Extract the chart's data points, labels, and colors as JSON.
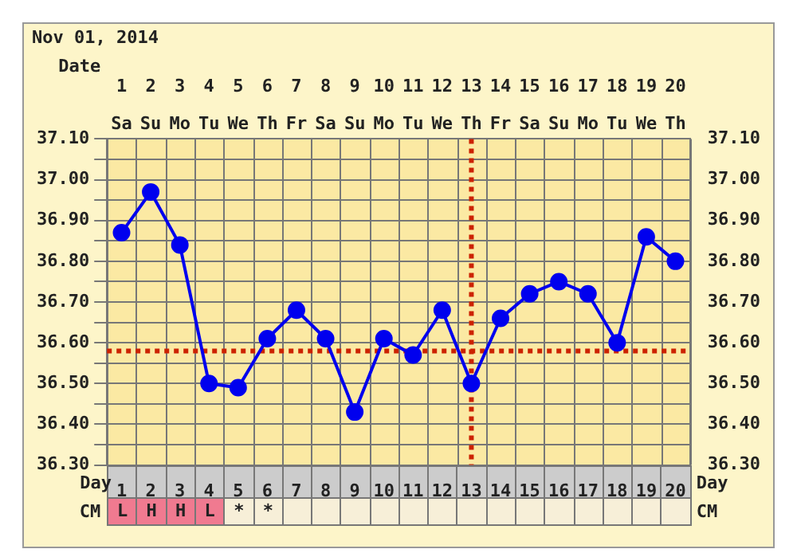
{
  "chart_data": {
    "type": "line",
    "title": "Nov 01, 2014",
    "xlabel": "Day",
    "x2label": "Date",
    "x": [
      1,
      2,
      3,
      4,
      5,
      6,
      7,
      8,
      9,
      10,
      11,
      12,
      13,
      14,
      15,
      16,
      17,
      18,
      19,
      20
    ],
    "series": [
      {
        "color": "#0000ee",
        "values": [
          36.87,
          36.97,
          36.84,
          36.5,
          36.49,
          36.61,
          36.68,
          36.61,
          36.43,
          36.61,
          36.57,
          36.68,
          36.5,
          36.66,
          36.72,
          36.75,
          36.72,
          36.6,
          36.86,
          36.8
        ]
      }
    ],
    "xlim": [
      0.5,
      20.5
    ],
    "xticks": [
      1,
      2,
      3,
      4,
      5,
      6,
      7,
      8,
      9,
      10,
      11,
      12,
      13,
      14,
      15,
      16,
      17,
      18,
      19,
      20
    ],
    "x2lim": [
      0.5,
      20.5
    ],
    "x2ticks": [
      1,
      2,
      3,
      4,
      5,
      6,
      7,
      8,
      9,
      10,
      11,
      12,
      13,
      14,
      15,
      16,
      17,
      18,
      19,
      20
    ],
    "ylim": [
      36.3,
      37.1
    ],
    "yticks": [
      {
        "value": 36.3,
        "label": "36.30"
      },
      {
        "value": 36.35,
        "label": null
      },
      {
        "value": 36.4,
        "label": "36.40"
      },
      {
        "value": 36.45,
        "label": null
      },
      {
        "value": 36.5,
        "label": "36.50"
      },
      {
        "value": 36.55,
        "label": null
      },
      {
        "value": 36.6,
        "label": "36.60"
      },
      {
        "value": 36.65,
        "label": null
      },
      {
        "value": 36.7,
        "label": "36.70"
      },
      {
        "value": 36.75,
        "label": null
      },
      {
        "value": 36.8,
        "label": "36.80"
      },
      {
        "value": 36.85,
        "label": null
      },
      {
        "value": 36.9,
        "label": "36.90"
      },
      {
        "value": 36.95,
        "label": null
      },
      {
        "value": 37.0,
        "label": "37.00"
      },
      {
        "value": 37.05,
        "label": null
      },
      {
        "value": 37.1,
        "label": "37.10"
      }
    ],
    "y2lim": [
      36.3,
      37.1
    ],
    "y2ticks": [
      {
        "value": 36.3,
        "label": "36.30"
      },
      {
        "value": 36.35,
        "label": null
      },
      {
        "value": 36.4,
        "label": "36.40"
      },
      {
        "value": 36.45,
        "label": null
      },
      {
        "value": 36.5,
        "label": "36.50"
      },
      {
        "value": 36.55,
        "label": null
      },
      {
        "value": 36.6,
        "label": "36.60"
      },
      {
        "value": 36.65,
        "label": null
      },
      {
        "value": 36.7,
        "label": "36.70"
      },
      {
        "value": 36.75,
        "label": null
      },
      {
        "value": 36.8,
        "label": "36.80"
      },
      {
        "value": 36.85,
        "label": null
      },
      {
        "value": 36.9,
        "label": "36.90"
      },
      {
        "value": 36.95,
        "label": null
      },
      {
        "value": 37.0,
        "label": "37.00"
      },
      {
        "value": 37.05,
        "label": null
      },
      {
        "value": 37.1,
        "label": "37.10"
      }
    ],
    "ref_lines": [
      {
        "axis": "y",
        "value": 36.58,
        "color": "#cc2200",
        "line_style": "dotted"
      },
      {
        "axis": "x",
        "value": 13,
        "color": "#cc2200",
        "line_style": "dotted"
      }
    ],
    "annotations": [
      "Sa",
      "Su",
      "Mo",
      "Tu",
      "We",
      "Th",
      "Fr",
      "Sa",
      "Su",
      "Mo",
      "Tu",
      "We",
      "Th",
      "Fr",
      "Sa",
      "Su",
      "Mo",
      "Tu",
      "We",
      "Th",
      "CM",
      "L",
      "H",
      "H",
      "L",
      "*",
      "*"
    ],
    "grid": true,
    "marker": "circle",
    "line_style": "solid"
  }
}
